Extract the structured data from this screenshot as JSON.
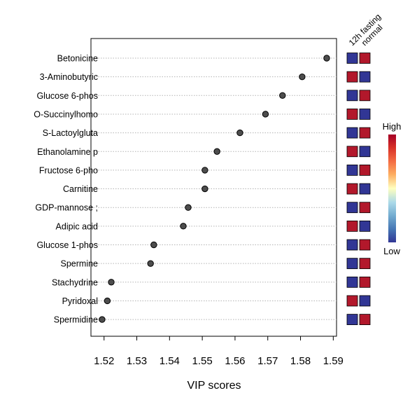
{
  "chart_data": {
    "type": "scatter",
    "orientation": "horizontal-dot-plot",
    "xlabel": "VIP scores",
    "xlim": [
      1.516,
      1.591
    ],
    "xticks": [
      1.52,
      1.53,
      1.54,
      1.55,
      1.56,
      1.57,
      1.58,
      1.59
    ],
    "xtick_labels": [
      "1.52",
      "1.53",
      "1.54",
      "1.55",
      "1.56",
      "1.57",
      "1.58",
      "1.59"
    ],
    "grid": "dotted horizontal per feature",
    "features": [
      {
        "name": "Betonicine",
        "vip": 1.588,
        "fasting_12h": "low",
        "normal": "high"
      },
      {
        "name": "3-Aminobutyric",
        "vip": 1.5805,
        "fasting_12h": "high",
        "normal": "low"
      },
      {
        "name": "Glucose 6-phos",
        "vip": 1.5745,
        "fasting_12h": "low",
        "normal": "high"
      },
      {
        "name": "O-Succinylhomo",
        "vip": 1.5693,
        "fasting_12h": "high",
        "normal": "low"
      },
      {
        "name": "S-Lactoylgluta",
        "vip": 1.5615,
        "fasting_12h": "low",
        "normal": "high"
      },
      {
        "name": "Ethanolamine p",
        "vip": 1.5545,
        "fasting_12h": "high",
        "normal": "low"
      },
      {
        "name": "Fructose 6-pho",
        "vip": 1.5508,
        "fasting_12h": "low",
        "normal": "high"
      },
      {
        "name": "Carnitine",
        "vip": 1.5508,
        "fasting_12h": "high",
        "normal": "low"
      },
      {
        "name": "GDP-mannose ;",
        "vip": 1.5457,
        "fasting_12h": "low",
        "normal": "high"
      },
      {
        "name": "Adipic acid",
        "vip": 1.5442,
        "fasting_12h": "high",
        "normal": "low"
      },
      {
        "name": "Glucose 1-phos",
        "vip": 1.5352,
        "fasting_12h": "low",
        "normal": "high"
      },
      {
        "name": "Spermine",
        "vip": 1.5342,
        "fasting_12h": "low",
        "normal": "high"
      },
      {
        "name": "Stachydrine",
        "vip": 1.5222,
        "fasting_12h": "low",
        "normal": "high"
      },
      {
        "name": "Pyridoxal",
        "vip": 1.521,
        "fasting_12h": "high",
        "normal": "low"
      },
      {
        "name": "Spermidine",
        "vip": 1.5194,
        "fasting_12h": "low",
        "normal": "high"
      }
    ],
    "heatmap_columns": [
      "12h fasting",
      "normal"
    ],
    "colorbar": {
      "high_label": "High",
      "low_label": "Low",
      "high_color": "#b2182b",
      "low_color": "#313695"
    },
    "colors": {
      "point": "#4d4d4d",
      "high_cell": "#b2182b",
      "low_cell": "#313695"
    }
  }
}
